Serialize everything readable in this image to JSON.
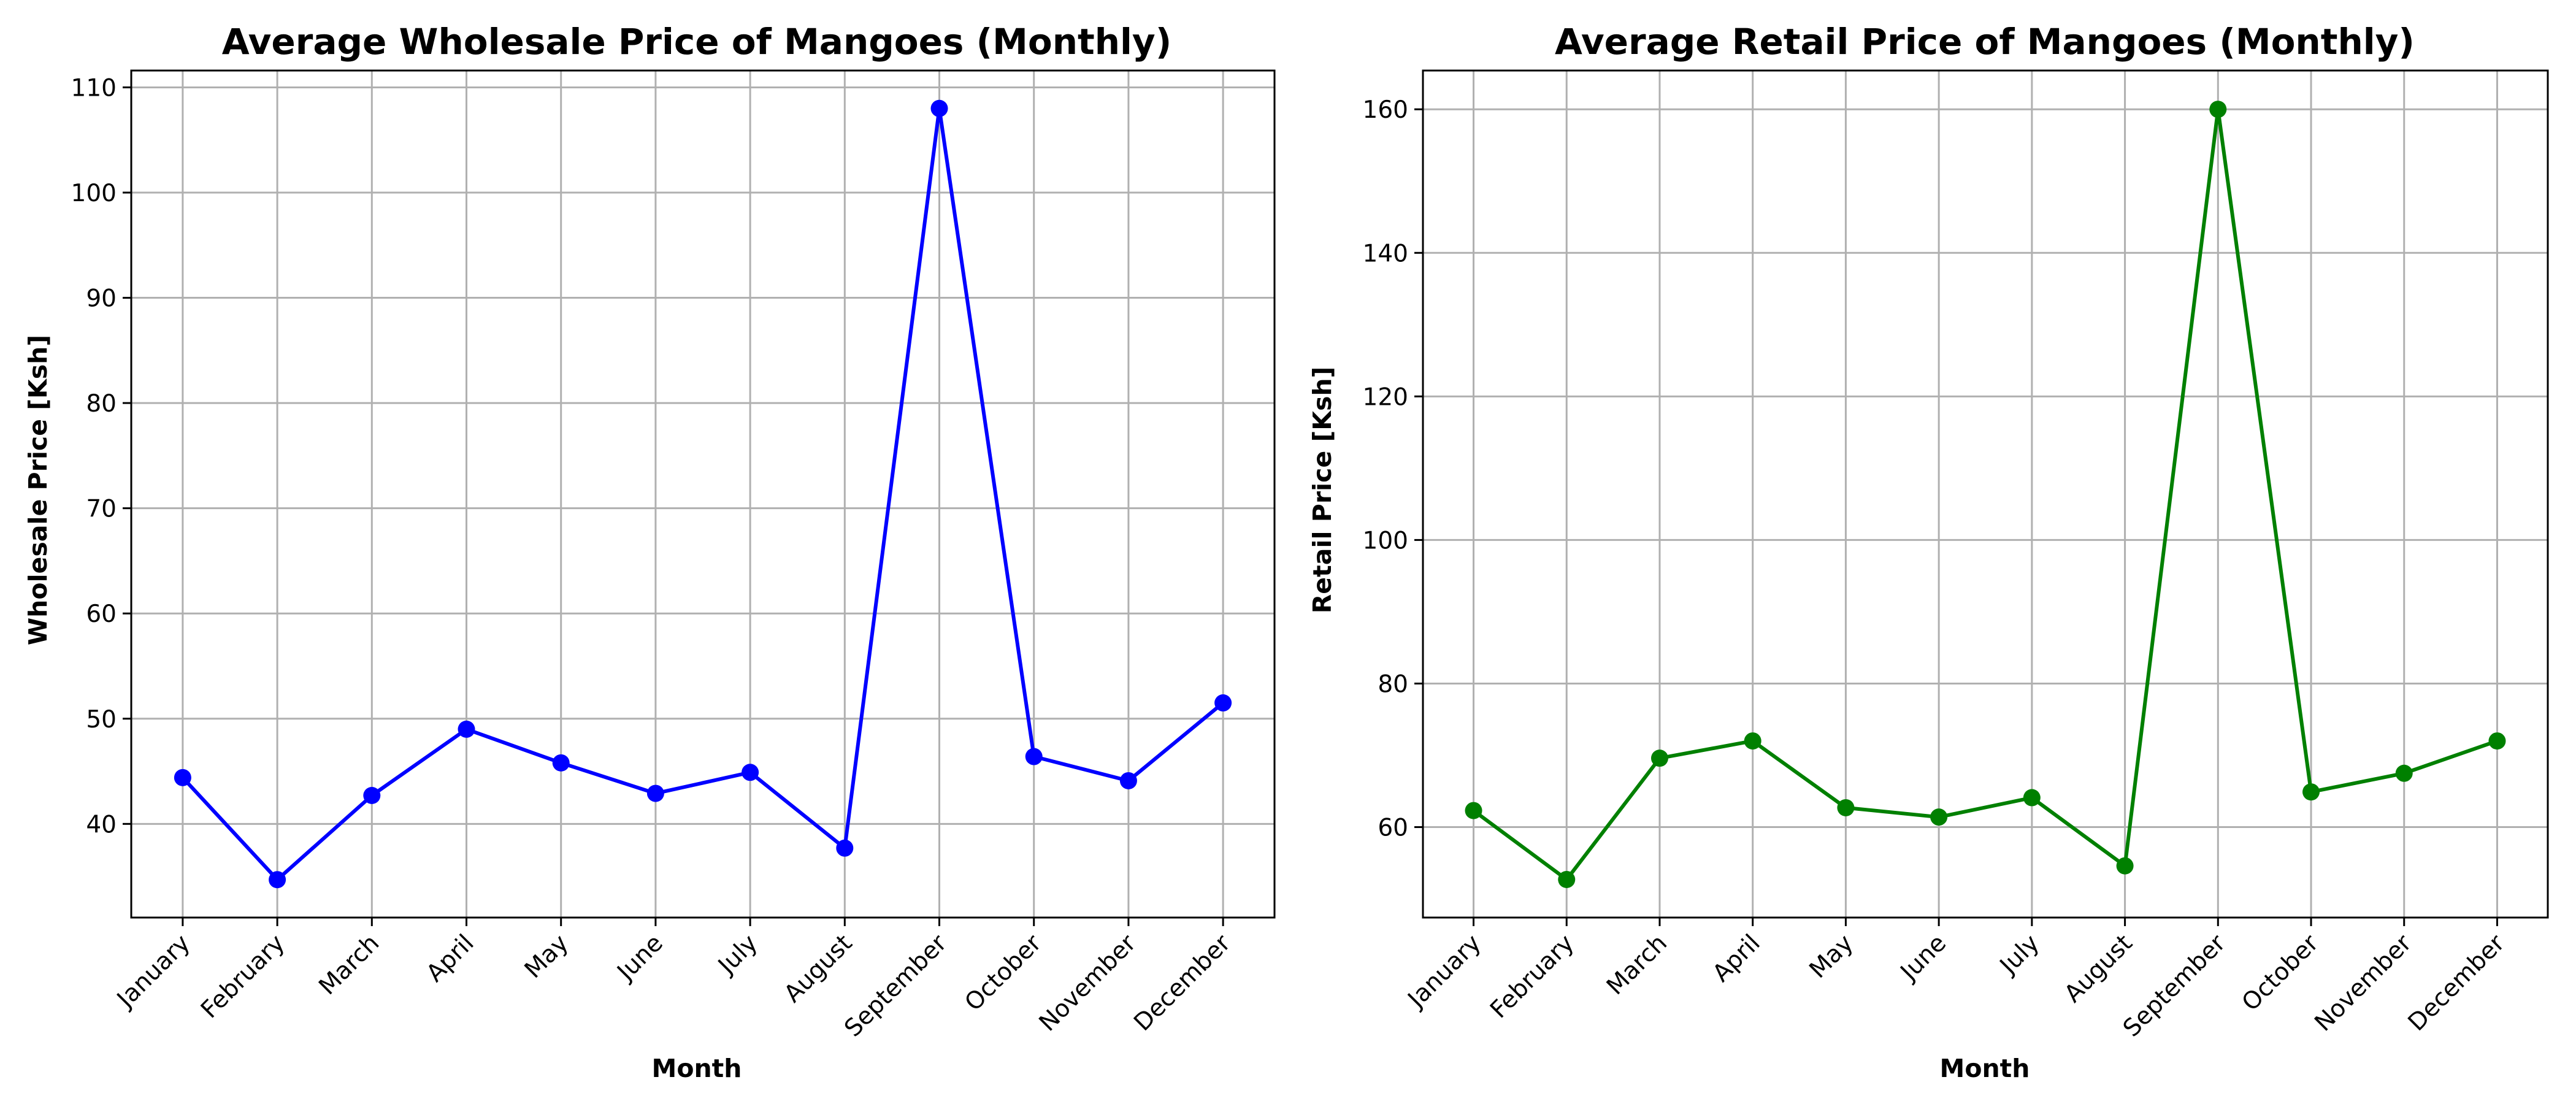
{
  "chart_data": [
    {
      "type": "line",
      "title": "Average Wholesale Price of Mangoes (Monthly)",
      "xlabel": "Month",
      "ylabel": "Wholesale Price [Ksh]",
      "categories": [
        "January",
        "February",
        "March",
        "April",
        "May",
        "June",
        "July",
        "August",
        "September",
        "October",
        "November",
        "December"
      ],
      "series": [
        {
          "values": [
            44.4,
            34.7,
            42.7,
            49.0,
            45.8,
            42.9,
            44.9,
            37.7,
            108.0,
            46.4,
            44.1,
            51.5
          ],
          "color": "#0000ff",
          "marker": "circle"
        }
      ],
      "ylim": [
        31.1,
        111.6
      ],
      "yticks": [
        40,
        50,
        60,
        70,
        80,
        90,
        100,
        110
      ],
      "grid": true,
      "legend": "none"
    },
    {
      "type": "line",
      "title": "Average Retail Price of Mangoes (Monthly)",
      "xlabel": "Month",
      "ylabel": "Retail Price [Ksh]",
      "categories": [
        "January",
        "February",
        "March",
        "April",
        "May",
        "June",
        "July",
        "August",
        "September",
        "October",
        "November",
        "December"
      ],
      "series": [
        {
          "values": [
            62.3,
            52.7,
            69.6,
            72.0,
            62.7,
            61.4,
            64.1,
            54.6,
            160.0,
            64.9,
            67.5,
            72.0
          ],
          "color": "#008000",
          "marker": "circle"
        }
      ],
      "ylim": [
        47.4,
        165.4
      ],
      "yticks": [
        60,
        80,
        100,
        120,
        140,
        160
      ],
      "grid": true,
      "legend": "none"
    }
  ]
}
